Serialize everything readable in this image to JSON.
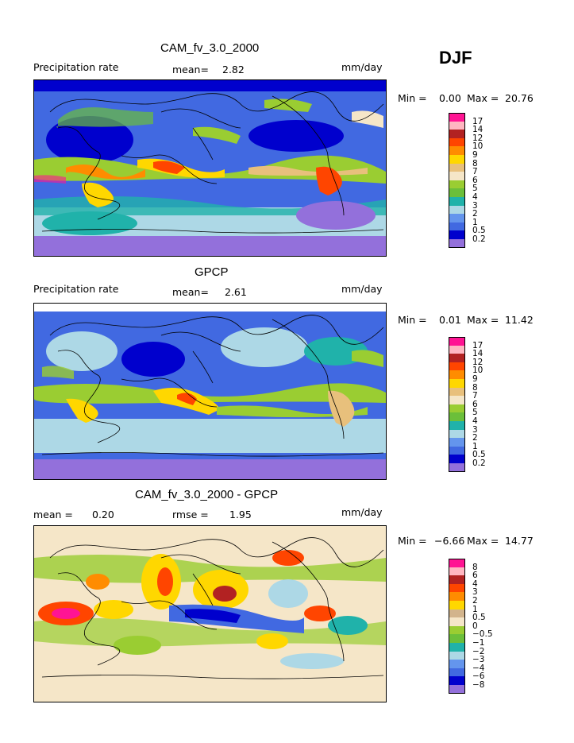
{
  "season": "DJF",
  "panels": [
    {
      "title": "CAM_fv_3.0_2000",
      "left_label": "Precipitation rate",
      "center_label": "mean=",
      "center_value": "2.82",
      "units": "mm/day",
      "min_label": "Min =",
      "min_value": "0.00",
      "max_label": "Max =",
      "max_value": "20.76",
      "colorbar_labels": [
        "17",
        "14",
        "12",
        "10",
        "9",
        "8",
        "7",
        "6",
        "5",
        "4",
        "3",
        "2",
        "1",
        "0.5",
        "0.2"
      ]
    },
    {
      "title": "GPCP",
      "left_label": "Precipitation rate",
      "center_label": "mean=",
      "center_value": "2.61",
      "units": "mm/day",
      "min_label": "Min =",
      "min_value": "0.01",
      "max_label": "Max =",
      "max_value": "11.42",
      "colorbar_labels": [
        "17",
        "14",
        "12",
        "10",
        "9",
        "8",
        "7",
        "6",
        "5",
        "4",
        "3",
        "2",
        "1",
        "0.5",
        "0.2"
      ]
    },
    {
      "title": "CAM_fv_3.0_2000 - GPCP",
      "left_label": "mean =",
      "left_value": "0.20",
      "center_label": "rmse =",
      "center_value": "1.95",
      "units": "mm/day",
      "min_label": "Min =",
      "min_value": "−6.66",
      "max_label": "Max =",
      "max_value": "14.77",
      "colorbar_labels": [
        "8",
        "6",
        "4",
        "3",
        "2",
        "1",
        "0.5",
        "0",
        "−0.5",
        "−1",
        "−2",
        "−3",
        "−4",
        "−6",
        "−8"
      ]
    }
  ],
  "colors": {
    "precip_scale": [
      "#ff1493",
      "#ffb6c1",
      "#b22222",
      "#ff4500",
      "#ff8c00",
      "#ffd700",
      "#e8c07c",
      "#f5e6c8",
      "#9acd32",
      "#6bbf3a",
      "#20b2aa",
      "#add8e6",
      "#6495ed",
      "#4169e1",
      "#0000cd",
      "#9370db"
    ],
    "diff_scale": [
      "#ff1493",
      "#ffb6c1",
      "#b22222",
      "#ff4500",
      "#ff8c00",
      "#ffd700",
      "#d2b48c",
      "#f5e6c8",
      "#9acd32",
      "#6bbf3a",
      "#20b2aa",
      "#add8e6",
      "#6495ed",
      "#4169e1",
      "#0000cd",
      "#9370db"
    ]
  }
}
